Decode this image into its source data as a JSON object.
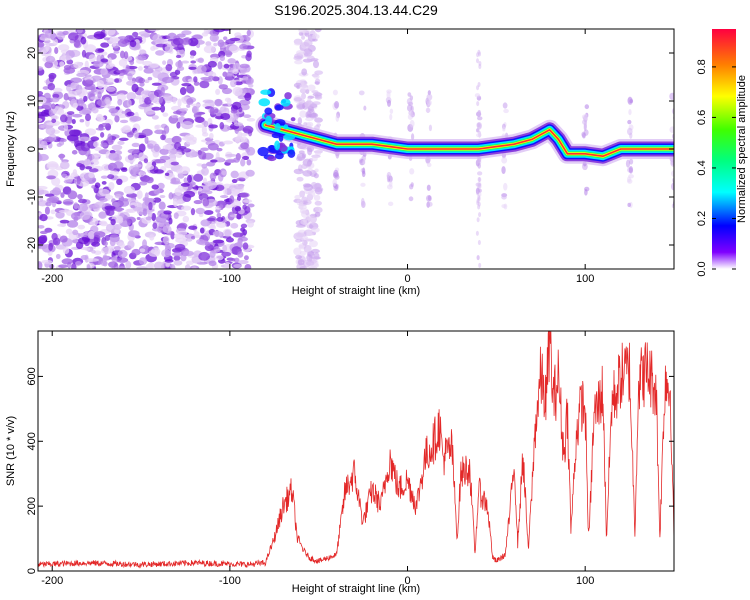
{
  "title": "S196.2025.304.13.44.C29",
  "chart_data": [
    {
      "type": "heatmap",
      "title": "S196.2025.304.13.44.C29",
      "xlabel": "Height of straight line (km)",
      "ylabel": "Frequency (Hz)",
      "xlim": [
        -208,
        150
      ],
      "ylim": [
        -25,
        25
      ],
      "x_ticks": [
        -200,
        -100,
        0,
        100
      ],
      "y_ticks": [
        20,
        10,
        0,
        -10,
        -20
      ],
      "colorbar": {
        "label": "Normalized spectral amplitude",
        "range": [
          0,
          0.95
        ],
        "ticks": [
          "0.0",
          "0.2",
          "0.4",
          "0.6",
          "0.8"
        ]
      },
      "ridge": {
        "description": "dominant frequency track",
        "x": [
          -80,
          -70,
          -60,
          -50,
          -40,
          -30,
          -20,
          -10,
          0,
          10,
          20,
          30,
          40,
          50,
          60,
          70,
          75,
          80,
          85,
          90,
          100,
          110,
          120,
          130,
          150
        ],
        "y": [
          5,
          4,
          3,
          2,
          1,
          1,
          1,
          0.5,
          0,
          0,
          0,
          0,
          0,
          0.5,
          1,
          2,
          3,
          4,
          2,
          -1,
          -1,
          -1.5,
          0,
          0,
          0
        ]
      }
    },
    {
      "type": "line",
      "xlabel": "Height of straight line (km)",
      "ylabel": "SNR (10 * v/v)",
      "xlim": [
        -208,
        150
      ],
      "ylim": [
        0,
        740
      ],
      "x_ticks": [
        -200,
        -100,
        0,
        100
      ],
      "y_ticks": [
        0,
        200,
        400,
        600
      ],
      "color": "#e32828",
      "series": [
        {
          "name": "SNR",
          "x": [
            -208,
            -180,
            -150,
            -120,
            -90,
            -80,
            -75,
            -70,
            -65,
            -62,
            -58,
            -55,
            -50,
            -45,
            -40,
            -35,
            -30,
            -25,
            -20,
            -15,
            -10,
            -5,
            0,
            5,
            10,
            15,
            18,
            20,
            25,
            28,
            30,
            35,
            38,
            40,
            45,
            48,
            50,
            55,
            58,
            60,
            62,
            65,
            68,
            70,
            72,
            75,
            78,
            80,
            82,
            85,
            88,
            90,
            92,
            95,
            98,
            100,
            102,
            105,
            108,
            110,
            112,
            115,
            118,
            120,
            125,
            128,
            130,
            132,
            135,
            140,
            142,
            145,
            148,
            150
          ],
          "y": [
            20,
            25,
            20,
            25,
            20,
            25,
            100,
            200,
            250,
            100,
            60,
            40,
            30,
            40,
            50,
            250,
            300,
            150,
            250,
            200,
            350,
            250,
            280,
            200,
            350,
            400,
            450,
            350,
            380,
            100,
            300,
            320,
            50,
            250,
            200,
            40,
            30,
            50,
            200,
            350,
            80,
            360,
            60,
            250,
            450,
            600,
            520,
            740,
            520,
            600,
            350,
            500,
            120,
            420,
            520,
            500,
            90,
            480,
            520,
            560,
            100,
            520,
            560,
            600,
            620,
            120,
            580,
            600,
            620,
            560,
            100,
            600,
            550,
            100
          ]
        }
      ]
    }
  ]
}
